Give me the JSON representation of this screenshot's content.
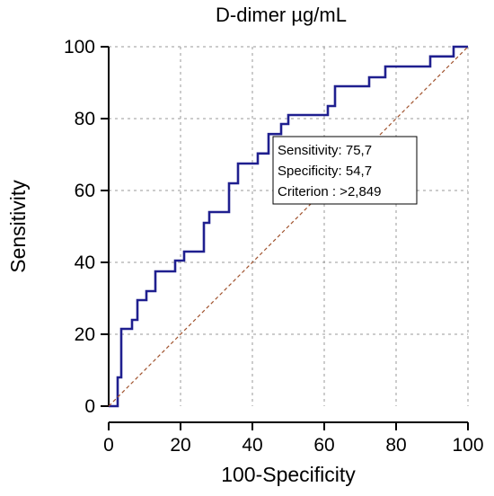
{
  "chart_data": {
    "type": "line",
    "title": "D-dimer µg/mL",
    "xlabel": "100-Specificity",
    "ylabel": "Sensitivity",
    "xlim": [
      0,
      100
    ],
    "ylim": [
      0,
      100
    ],
    "xticks": [
      "0",
      "20",
      "40",
      "60",
      "80",
      "100"
    ],
    "yticks": [
      "0",
      "20",
      "40",
      "60",
      "80",
      "100"
    ],
    "grid": true,
    "series": [
      {
        "color": "#1f1f8f",
        "style": "step",
        "x": [
          0,
          2.5,
          2.5,
          3.5,
          3.5,
          6.5,
          6.5,
          8,
          8,
          10.5,
          10.5,
          13,
          13,
          18.5,
          18.5,
          21,
          21,
          26.5,
          26.5,
          28,
          28,
          33.5,
          33.5,
          36,
          36,
          41.5,
          41.5,
          44.5,
          44.5,
          48,
          48,
          50,
          50,
          54,
          54,
          61,
          61,
          63,
          63,
          72.5,
          72.5,
          77,
          77,
          89.5,
          89.5,
          96,
          96,
          100
        ],
        "y": [
          0,
          0,
          8,
          8,
          21.5,
          21.5,
          24,
          24,
          29.5,
          29.5,
          32,
          32,
          37.5,
          37.5,
          40.5,
          40.5,
          43,
          43,
          51,
          51,
          54,
          54,
          62,
          62,
          67.5,
          67.5,
          70.3,
          70.3,
          75.7,
          75.7,
          78.5,
          78.5,
          81,
          81,
          81,
          81,
          83.5,
          83.5,
          89,
          89,
          91.5,
          91.5,
          94.5,
          94.5,
          97.3,
          97.3,
          100,
          100
        ]
      },
      {
        "color": "#a0522d",
        "style": "dashed",
        "x": [
          0,
          100
        ],
        "y": [
          0,
          100
        ]
      }
    ],
    "annotation": {
      "lines": [
        "Sensitivity: 75,7",
        "Specificity: 54,7",
        "Criterion : >2,849"
      ],
      "anchor": [
        45,
        75.7
      ]
    }
  }
}
